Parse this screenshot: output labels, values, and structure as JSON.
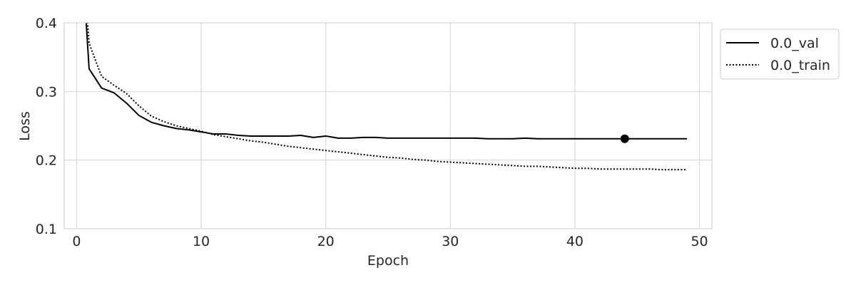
{
  "chart_data": {
    "type": "line",
    "title": "",
    "xlabel": "Epoch",
    "ylabel": "Loss",
    "xlim": [
      -1,
      51
    ],
    "ylim": [
      0.1,
      0.4
    ],
    "xticks": [
      0,
      10,
      20,
      30,
      40,
      50
    ],
    "yticks": [
      0.1,
      0.2,
      0.3,
      0.4
    ],
    "xtick_labels": [
      "0",
      "10",
      "20",
      "30",
      "40",
      "50"
    ],
    "ytick_labels": [
      "0.1",
      "0.2",
      "0.3",
      "0.4"
    ],
    "grid": true,
    "legend_position": "outside-right-top",
    "x": [
      0,
      1,
      2,
      3,
      4,
      5,
      6,
      7,
      8,
      9,
      10,
      11,
      12,
      13,
      14,
      15,
      16,
      17,
      18,
      19,
      20,
      21,
      22,
      23,
      24,
      25,
      26,
      27,
      28,
      29,
      30,
      31,
      32,
      33,
      34,
      35,
      36,
      37,
      38,
      39,
      40,
      41,
      42,
      43,
      44,
      45,
      46,
      47,
      48,
      49
    ],
    "series": [
      {
        "name": "0.0_val",
        "line_style": "solid",
        "color": "#000000",
        "values": [
          0.62,
          0.333,
          0.305,
          0.298,
          0.283,
          0.265,
          0.255,
          0.25,
          0.246,
          0.244,
          0.241,
          0.238,
          0.238,
          0.236,
          0.235,
          0.235,
          0.235,
          0.235,
          0.236,
          0.233,
          0.235,
          0.232,
          0.232,
          0.233,
          0.233,
          0.232,
          0.232,
          0.232,
          0.232,
          0.232,
          0.232,
          0.232,
          0.232,
          0.231,
          0.231,
          0.231,
          0.232,
          0.231,
          0.231,
          0.231,
          0.231,
          0.231,
          0.231,
          0.231,
          0.231,
          0.231,
          0.231,
          0.231,
          0.231,
          0.231
        ]
      },
      {
        "name": "0.0_train",
        "line_style": "dotted",
        "color": "#000000",
        "values": [
          0.62,
          0.37,
          0.322,
          0.309,
          0.297,
          0.279,
          0.264,
          0.256,
          0.25,
          0.246,
          0.242,
          0.237,
          0.234,
          0.231,
          0.228,
          0.226,
          0.223,
          0.22,
          0.218,
          0.216,
          0.214,
          0.212,
          0.21,
          0.208,
          0.206,
          0.204,
          0.203,
          0.201,
          0.2,
          0.198,
          0.197,
          0.196,
          0.195,
          0.194,
          0.193,
          0.192,
          0.191,
          0.191,
          0.19,
          0.189,
          0.188,
          0.188,
          0.187,
          0.187,
          0.187,
          0.187,
          0.187,
          0.186,
          0.186,
          0.186
        ]
      }
    ],
    "annotations": [
      {
        "series": "0.0_val",
        "marker": "filled-circle",
        "x": 44,
        "y": 0.231
      }
    ]
  }
}
